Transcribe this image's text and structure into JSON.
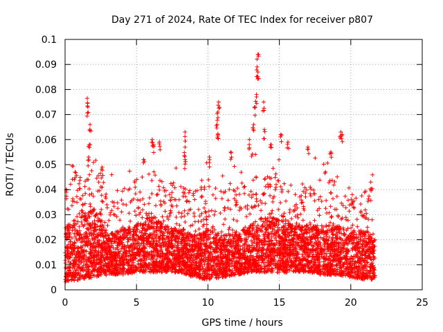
{
  "chart_data": {
    "type": "scatter",
    "title": "Day 271 of 2024, Rate Of TEC Index for receiver p807",
    "xlabel": "GPS time / hours",
    "ylabel": "ROTI / TECUs",
    "xlim": [
      0,
      25
    ],
    "ylim": [
      0,
      0.1
    ],
    "x_ticks": [
      0,
      5,
      10,
      15,
      20,
      25
    ],
    "y_ticks": [
      0,
      0.01,
      0.02,
      0.03,
      0.04,
      0.05,
      0.06,
      0.07,
      0.08,
      0.09,
      0.1
    ],
    "x_tick_labels": [
      "0",
      "5",
      "10",
      "15",
      "20",
      "25"
    ],
    "y_tick_labels": [
      "0",
      "0.01",
      "0.02",
      "0.03",
      "0.04",
      "0.05",
      "0.06",
      "0.07",
      "0.08",
      "0.09",
      "0.1"
    ],
    "grid": true,
    "marker": "+",
    "color": "#ff0000",
    "x_range_of_data": [
      0,
      21.7
    ],
    "band_description_by_hour": [
      {
        "x": 0.0,
        "low": 0.003,
        "high": 0.025
      },
      {
        "x": 1.0,
        "low": 0.004,
        "high": 0.028
      },
      {
        "x": 2.0,
        "low": 0.005,
        "high": 0.033
      },
      {
        "x": 3.0,
        "low": 0.006,
        "high": 0.022
      },
      {
        "x": 4.0,
        "low": 0.006,
        "high": 0.024
      },
      {
        "x": 5.0,
        "low": 0.007,
        "high": 0.026
      },
      {
        "x": 6.0,
        "low": 0.007,
        "high": 0.03
      },
      {
        "x": 7.0,
        "low": 0.007,
        "high": 0.026
      },
      {
        "x": 8.0,
        "low": 0.007,
        "high": 0.024
      },
      {
        "x": 9.0,
        "low": 0.005,
        "high": 0.022
      },
      {
        "x": 10.0,
        "low": 0.004,
        "high": 0.024
      },
      {
        "x": 11.0,
        "low": 0.005,
        "high": 0.022
      },
      {
        "x": 12.0,
        "low": 0.006,
        "high": 0.023
      },
      {
        "x": 13.0,
        "low": 0.007,
        "high": 0.026
      },
      {
        "x": 14.0,
        "low": 0.007,
        "high": 0.03
      },
      {
        "x": 15.0,
        "low": 0.007,
        "high": 0.028
      },
      {
        "x": 16.0,
        "low": 0.007,
        "high": 0.026
      },
      {
        "x": 17.0,
        "low": 0.007,
        "high": 0.026
      },
      {
        "x": 18.0,
        "low": 0.006,
        "high": 0.026
      },
      {
        "x": 19.0,
        "low": 0.006,
        "high": 0.026
      },
      {
        "x": 20.0,
        "low": 0.005,
        "high": 0.024
      },
      {
        "x": 21.0,
        "low": 0.004,
        "high": 0.024
      },
      {
        "x": 21.7,
        "low": 0.004,
        "high": 0.022
      }
    ],
    "notable_points": [
      {
        "x": 1.55,
        "y": 0.0765
      },
      {
        "x": 1.6,
        "y": 0.073
      },
      {
        "x": 1.75,
        "y": 0.066
      },
      {
        "x": 1.7,
        "y": 0.058
      },
      {
        "x": 1.65,
        "y": 0.053
      },
      {
        "x": 0.1,
        "y": 0.04
      },
      {
        "x": 0.7,
        "y": 0.047
      },
      {
        "x": 2.6,
        "y": 0.049
      },
      {
        "x": 6.1,
        "y": 0.06
      },
      {
        "x": 6.2,
        "y": 0.058
      },
      {
        "x": 6.6,
        "y": 0.059
      },
      {
        "x": 5.5,
        "y": 0.052
      },
      {
        "x": 8.4,
        "y": 0.063
      },
      {
        "x": 8.4,
        "y": 0.057
      },
      {
        "x": 8.4,
        "y": 0.052
      },
      {
        "x": 10.75,
        "y": 0.075
      },
      {
        "x": 10.7,
        "y": 0.071
      },
      {
        "x": 10.65,
        "y": 0.066
      },
      {
        "x": 10.7,
        "y": 0.062
      },
      {
        "x": 10.1,
        "y": 0.053
      },
      {
        "x": 11.6,
        "y": 0.055
      },
      {
        "x": 12.9,
        "y": 0.06
      },
      {
        "x": 13.5,
        "y": 0.094
      },
      {
        "x": 13.45,
        "y": 0.089
      },
      {
        "x": 13.5,
        "y": 0.087
      },
      {
        "x": 13.4,
        "y": 0.078
      },
      {
        "x": 13.3,
        "y": 0.073
      },
      {
        "x": 13.2,
        "y": 0.066
      },
      {
        "x": 13.9,
        "y": 0.075
      },
      {
        "x": 13.95,
        "y": 0.064
      },
      {
        "x": 14.4,
        "y": 0.058
      },
      {
        "x": 15.1,
        "y": 0.062
      },
      {
        "x": 15.6,
        "y": 0.059
      },
      {
        "x": 17.0,
        "y": 0.057
      },
      {
        "x": 19.3,
        "y": 0.063
      },
      {
        "x": 19.4,
        "y": 0.062
      },
      {
        "x": 18.6,
        "y": 0.055
      },
      {
        "x": 21.4,
        "y": 0.043
      },
      {
        "x": 20.1,
        "y": 0.038
      }
    ]
  }
}
